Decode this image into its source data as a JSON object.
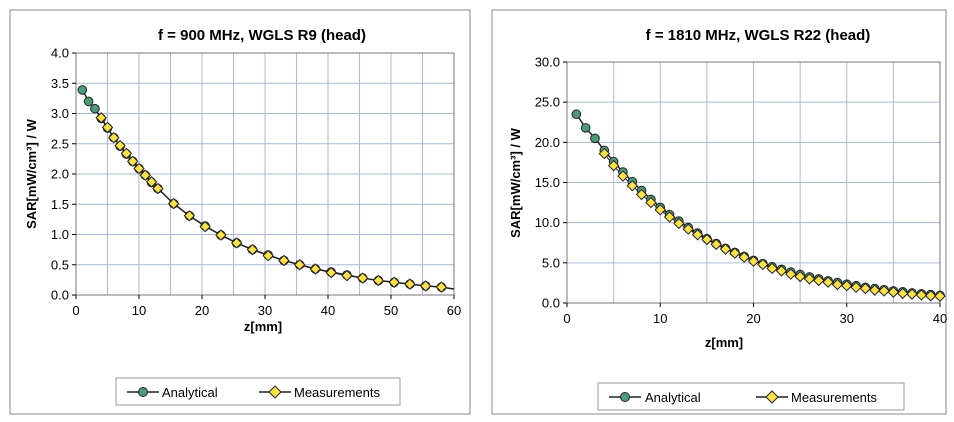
{
  "colors": {
    "analytical_fill": "#4e9a78",
    "measurement_fill": "#ffe14a",
    "line": "#222222",
    "grid": "#a9b8d6",
    "frame": "#888888"
  },
  "chart_data": [
    {
      "type": "line",
      "title": "f = 900 MHz, WGLS R9 (head)",
      "xlabel": "z[mm]",
      "ylabel": "SAR[mW/cm³] / W",
      "xlim": [
        0,
        60
      ],
      "ylim": [
        0,
        4.0
      ],
      "xticks": [
        "0",
        "10",
        "20",
        "30",
        "40",
        "50",
        "60"
      ],
      "yticks": [
        "0.0",
        "0.5",
        "1.0",
        "1.5",
        "2.0",
        "2.5",
        "3.0",
        "3.5",
        "4.0"
      ],
      "grid": true,
      "legend_position": "bottom",
      "line_end": [
        60,
        0.1
      ],
      "series": [
        {
          "name": "Analytical",
          "marker": "circle",
          "x": [
            1,
            2,
            3,
            4,
            5,
            6,
            7,
            8,
            9,
            10,
            11,
            12,
            13,
            15.5,
            18,
            20.5,
            23,
            25.5,
            28,
            30.5,
            33,
            35.5,
            38,
            40.5,
            43,
            45.5,
            48,
            50.5,
            53,
            55.5,
            58
          ],
          "y": [
            3.39,
            3.2,
            3.08,
            2.92,
            2.76,
            2.6,
            2.46,
            2.33,
            2.21,
            2.09,
            1.98,
            1.86,
            1.76,
            1.51,
            1.31,
            1.14,
            0.99,
            0.86,
            0.75,
            0.66,
            0.57,
            0.5,
            0.43,
            0.38,
            0.33,
            0.28,
            0.24,
            0.21,
            0.18,
            0.15,
            0.13
          ]
        },
        {
          "name": "Measurements",
          "marker": "diamond",
          "x": [
            4,
            5,
            6,
            7,
            8,
            9,
            10,
            11,
            12,
            13,
            15.5,
            18,
            20.5,
            23,
            25.5,
            28,
            30.5,
            33,
            35.5,
            38,
            40.5,
            43,
            45.5,
            48,
            50.5,
            53,
            55.5,
            58
          ],
          "y": [
            2.93,
            2.77,
            2.6,
            2.47,
            2.34,
            2.21,
            2.09,
            1.98,
            1.87,
            1.76,
            1.51,
            1.31,
            1.13,
            0.99,
            0.86,
            0.75,
            0.65,
            0.57,
            0.5,
            0.43,
            0.37,
            0.32,
            0.28,
            0.24,
            0.21,
            0.18,
            0.15,
            0.13
          ]
        }
      ]
    },
    {
      "type": "line",
      "title": "f = 1810 MHz, WGLS R22 (head)",
      "xlabel": "z[mm]",
      "ylabel": "SAR[mW/cm³] / W",
      "xlim": [
        0,
        40
      ],
      "ylim": [
        0,
        30.0
      ],
      "xticks": [
        "0",
        "10",
        "20",
        "30",
        "40"
      ],
      "yticks": [
        "0.0",
        "5.0",
        "10.0",
        "15.0",
        "20.0",
        "25.0",
        "30.0"
      ],
      "grid": true,
      "legend_position": "bottom",
      "line_end": [
        40,
        0.9
      ],
      "series": [
        {
          "name": "Analytical",
          "marker": "circle",
          "x": [
            1,
            2,
            3,
            4,
            5,
            6,
            7,
            8,
            9,
            10,
            11,
            12,
            13,
            14,
            15,
            16,
            17,
            18,
            19,
            20,
            21,
            22,
            23,
            24,
            25,
            26,
            27,
            28,
            29,
            30,
            31,
            32,
            33,
            34,
            35,
            36,
            37,
            38,
            39,
            40
          ],
          "y": [
            23.5,
            21.8,
            20.5,
            19.0,
            17.6,
            16.3,
            15.1,
            14.0,
            12.9,
            11.9,
            11.0,
            10.2,
            9.4,
            8.7,
            8.0,
            7.4,
            6.8,
            6.3,
            5.8,
            5.3,
            4.9,
            4.5,
            4.2,
            3.85,
            3.55,
            3.25,
            3.0,
            2.75,
            2.55,
            2.35,
            2.15,
            1.95,
            1.8,
            1.65,
            1.5,
            1.4,
            1.25,
            1.15,
            1.05,
            0.95
          ]
        },
        {
          "name": "Measurements",
          "marker": "diamond",
          "x": [
            4,
            5,
            6,
            7,
            8,
            9,
            10,
            11,
            12,
            13,
            14,
            15,
            16,
            17,
            18,
            19,
            20,
            21,
            22,
            23,
            24,
            25,
            26,
            27,
            28,
            29,
            30,
            31,
            32,
            33,
            34,
            35,
            36,
            37,
            38,
            39,
            40
          ],
          "y": [
            18.6,
            17.1,
            15.8,
            14.6,
            13.5,
            12.5,
            11.6,
            10.7,
            9.9,
            9.2,
            8.5,
            7.9,
            7.3,
            6.7,
            6.2,
            5.7,
            5.2,
            4.8,
            4.3,
            4.0,
            3.6,
            3.3,
            3.0,
            2.8,
            2.6,
            2.3,
            2.15,
            1.95,
            1.8,
            1.6,
            1.5,
            1.35,
            1.2,
            1.1,
            1.0,
            0.9,
            0.85
          ]
        }
      ]
    }
  ]
}
